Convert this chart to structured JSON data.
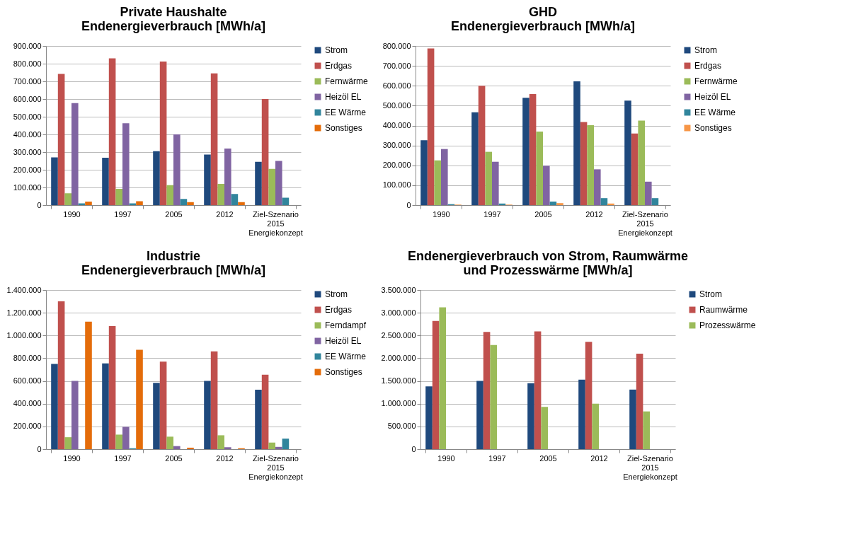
{
  "chart_data": [
    {
      "type": "bar",
      "title": "Private Haushalte\nEndenergieverbrauch [MWh/a]",
      "categories": [
        "1990",
        "1997",
        "2005",
        "2012",
        "Ziel-Szenario 2015 Energiekonzept"
      ],
      "ylim": [
        0,
        900000
      ],
      "yticks": [
        {
          "value": 0,
          "label": "0"
        },
        {
          "value": 100000,
          "label": "100.000"
        },
        {
          "value": 200000,
          "label": "200.000"
        },
        {
          "value": 300000,
          "label": "300.000"
        },
        {
          "value": 400000,
          "label": "400.000"
        },
        {
          "value": 500000,
          "label": "500.000"
        },
        {
          "value": 600000,
          "label": "600.000"
        },
        {
          "value": 700000,
          "label": "700.000"
        },
        {
          "value": 800000,
          "label": "800.000"
        },
        {
          "value": 900000,
          "label": "900.000"
        }
      ],
      "grid": "y",
      "legend": "right",
      "series": [
        {
          "name": "Strom",
          "color": "#1f497d",
          "values": [
            270000,
            268000,
            305000,
            286000,
            245000
          ]
        },
        {
          "name": "Erdgas",
          "color": "#c0504d",
          "values": [
            742000,
            830000,
            812000,
            745000,
            600000
          ]
        },
        {
          "name": "Fernwärme",
          "color": "#9bbb59",
          "values": [
            67000,
            92000,
            113000,
            120000,
            205000
          ]
        },
        {
          "name": "Heizöl EL",
          "color": "#8064a2",
          "values": [
            577000,
            463000,
            400000,
            320000,
            250000
          ]
        },
        {
          "name": "EE Wärme",
          "color": "#31859c",
          "values": [
            10000,
            10000,
            35000,
            63000,
            42000
          ]
        },
        {
          "name": "Sonstiges",
          "color": "#e46c0a",
          "values": [
            20000,
            22000,
            17000,
            17000,
            null
          ]
        }
      ]
    },
    {
      "type": "bar",
      "title": "GHD\nEndenergieverbrauch [MWh/a]",
      "categories": [
        "1990",
        "1997",
        "2005",
        "2012",
        "Ziel-Szenario 2015 Energiekonzept"
      ],
      "ylim": [
        0,
        800000
      ],
      "yticks": [
        {
          "value": 0,
          "label": "0"
        },
        {
          "value": 100000,
          "label": "100.000"
        },
        {
          "value": 200000,
          "label": "200.000"
        },
        {
          "value": 300000,
          "label": "300.000"
        },
        {
          "value": 400000,
          "label": "400.000"
        },
        {
          "value": 500000,
          "label": "500.000"
        },
        {
          "value": 600000,
          "label": "600.000"
        },
        {
          "value": 700000,
          "label": "700.000"
        },
        {
          "value": 800000,
          "label": "800.000"
        }
      ],
      "grid": "y",
      "legend": "right",
      "series": [
        {
          "name": "Strom",
          "color": "#1f497d",
          "values": [
            326000,
            467000,
            540000,
            622000,
            525000
          ]
        },
        {
          "name": "Erdgas",
          "color": "#c0504d",
          "values": [
            788000,
            600000,
            558000,
            418000,
            360000
          ]
        },
        {
          "name": "Fernwärme",
          "color": "#9bbb59",
          "values": [
            225000,
            268000,
            370000,
            402000,
            425000
          ]
        },
        {
          "name": "Heizöl EL",
          "color": "#8064a2",
          "values": [
            282000,
            218000,
            198000,
            180000,
            118000
          ]
        },
        {
          "name": "EE Wärme",
          "color": "#31859c",
          "values": [
            5000,
            8000,
            18000,
            35000,
            35000
          ]
        },
        {
          "name": "Sonstiges",
          "color": "#f79646",
          "values": [
            3000,
            3000,
            10000,
            8000,
            null
          ]
        }
      ]
    },
    {
      "type": "bar",
      "title": "Industrie\nEndenergieverbrauch [MWh/a]",
      "categories": [
        "1990",
        "1997",
        "2005",
        "2012",
        "Ziel-Szenario 2015 Energiekonzept"
      ],
      "ylim": [
        0,
        1400000
      ],
      "yticks": [
        {
          "value": 0,
          "label": "0"
        },
        {
          "value": 200000,
          "label": "200.000"
        },
        {
          "value": 400000,
          "label": "400.000"
        },
        {
          "value": 600000,
          "label": "600.000"
        },
        {
          "value": 800000,
          "label": "800.000"
        },
        {
          "value": 1000000,
          "label": "1.000.000"
        },
        {
          "value": 1200000,
          "label": "1.200.000"
        },
        {
          "value": 1400000,
          "label": "1.400.000"
        }
      ],
      "grid": "y",
      "legend": "right",
      "series": [
        {
          "name": "Strom",
          "color": "#1f497d",
          "values": [
            750000,
            755000,
            583000,
            600000,
            523000
          ]
        },
        {
          "name": "Erdgas",
          "color": "#c0504d",
          "values": [
            1300000,
            1083000,
            770000,
            860000,
            655000
          ]
        },
        {
          "name": "Ferndampf",
          "color": "#9bbb59",
          "values": [
            105000,
            128000,
            110000,
            122000,
            58000
          ]
        },
        {
          "name": "Heizöl EL",
          "color": "#8064a2",
          "values": [
            600000,
            197000,
            27000,
            17000,
            20000
          ]
        },
        {
          "name": "EE Wärme",
          "color": "#31859c",
          "values": [
            null,
            8000,
            null,
            null,
            93000
          ]
        },
        {
          "name": "Sonstiges",
          "color": "#e46c0a",
          "values": [
            1122000,
            875000,
            13000,
            8000,
            null
          ]
        }
      ]
    },
    {
      "type": "bar",
      "title": "Endenergieverbrauch von Strom, Raumwärme\nund Prozesswärme [MWh/a]",
      "categories": [
        "1990",
        "1997",
        "2005",
        "2012",
        "Ziel-Szenario 2015 Energiekonzept"
      ],
      "ylim": [
        0,
        3500000
      ],
      "yticks": [
        {
          "value": 0,
          "label": "0"
        },
        {
          "value": 500000,
          "label": "500.000"
        },
        {
          "value": 1000000,
          "label": "1.000.000"
        },
        {
          "value": 1500000,
          "label": "1.500.000"
        },
        {
          "value": 2000000,
          "label": "2.000.000"
        },
        {
          "value": 2500000,
          "label": "2.500.000"
        },
        {
          "value": 3000000,
          "label": "3.000.000"
        },
        {
          "value": 3500000,
          "label": "3.500.000"
        }
      ],
      "grid": "y",
      "legend": "right",
      "series": [
        {
          "name": "Strom",
          "color": "#1f497d",
          "values": [
            1380000,
            1500000,
            1450000,
            1530000,
            1310000
          ]
        },
        {
          "name": "Raumwärme",
          "color": "#c0504d",
          "values": [
            2820000,
            2580000,
            2590000,
            2360000,
            2100000
          ]
        },
        {
          "name": "Prozesswärme",
          "color": "#9bbb59",
          "values": [
            3120000,
            2290000,
            930000,
            1000000,
            830000
          ]
        }
      ]
    }
  ]
}
